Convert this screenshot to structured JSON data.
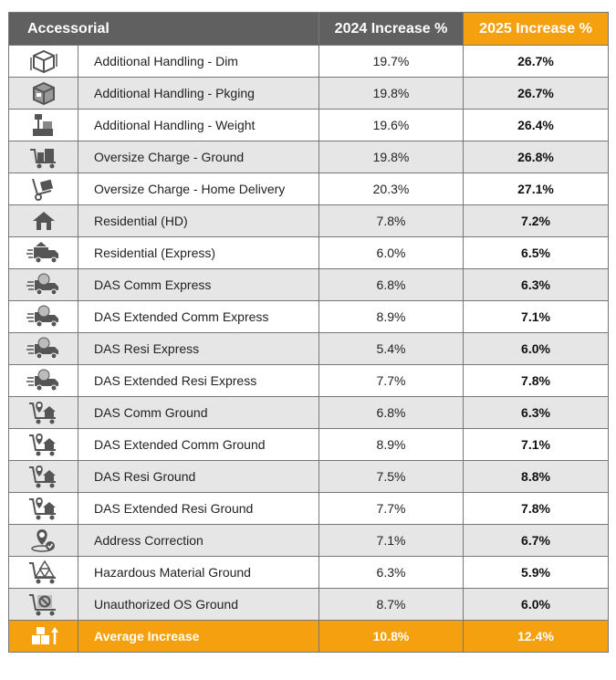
{
  "header": {
    "accessorial": "Accessorial",
    "y2024": "2024 Increase %",
    "y2025": "2025 Increase %"
  },
  "rows": [
    {
      "icon": "box-dimensions-icon",
      "name": "Additional Handling - Dim",
      "v2024": "19.7%",
      "v2025": "26.7%"
    },
    {
      "icon": "package-icon",
      "name": "Additional Handling - Pkging",
      "v2024": "19.8%",
      "v2025": "26.7%"
    },
    {
      "icon": "scale-weight-icon",
      "name": "Additional Handling - Weight",
      "v2024": "19.6%",
      "v2025": "26.4%"
    },
    {
      "icon": "cart-boxes-icon",
      "name": "Oversize Charge - Ground",
      "v2024": "19.8%",
      "v2025": "26.8%"
    },
    {
      "icon": "hand-truck-icon",
      "name": "Oversize Charge - Home Delivery",
      "v2024": "20.3%",
      "v2025": "27.1%"
    },
    {
      "icon": "house-icon",
      "name": "Residential (HD)",
      "v2024": "7.8%",
      "v2025": "7.2%"
    },
    {
      "icon": "delivery-truck-house-icon",
      "name": "Residential (Express)",
      "v2024": "6.0%",
      "v2025": "6.5%"
    },
    {
      "icon": "express-truck-icon",
      "name": "DAS Comm Express",
      "v2024": "6.8%",
      "v2025": "6.3%"
    },
    {
      "icon": "express-truck-icon",
      "name": "DAS Extended Comm Express",
      "v2024": "8.9%",
      "v2025": "7.1%"
    },
    {
      "icon": "express-truck-icon",
      "name": "DAS Resi Express",
      "v2024": "5.4%",
      "v2025": "6.0%"
    },
    {
      "icon": "express-truck-icon",
      "name": "DAS Extended Resi Express",
      "v2024": "7.7%",
      "v2025": "7.8%"
    },
    {
      "icon": "cart-location-house-icon",
      "name": "DAS Comm Ground",
      "v2024": "6.8%",
      "v2025": "6.3%"
    },
    {
      "icon": "cart-location-house-icon",
      "name": "DAS Extended Comm Ground",
      "v2024": "8.9%",
      "v2025": "7.1%"
    },
    {
      "icon": "cart-location-house-icon",
      "name": "DAS Resi Ground",
      "v2024": "7.5%",
      "v2025": "8.8%"
    },
    {
      "icon": "cart-location-house-icon",
      "name": "DAS Extended Resi Ground",
      "v2024": "7.7%",
      "v2025": "7.8%"
    },
    {
      "icon": "location-check-icon",
      "name": "Address Correction",
      "v2024": "7.1%",
      "v2025": "6.7%"
    },
    {
      "icon": "cart-hazard-icon",
      "name": "Hazardous Material Ground",
      "v2024": "6.3%",
      "v2025": "5.9%"
    },
    {
      "icon": "cart-prohibited-icon",
      "name": "Unauthorized OS Ground",
      "v2024": "8.7%",
      "v2025": "6.0%"
    }
  ],
  "average": {
    "icon": "boxes-up-arrow-icon",
    "name": "Average Increase",
    "v2024": "10.8%",
    "v2025": "12.4%"
  },
  "colors": {
    "header_gray": "#606060",
    "accent_orange": "#f5a10f",
    "row_alt": "#e6e6e6",
    "icon_gray": "#555555"
  }
}
